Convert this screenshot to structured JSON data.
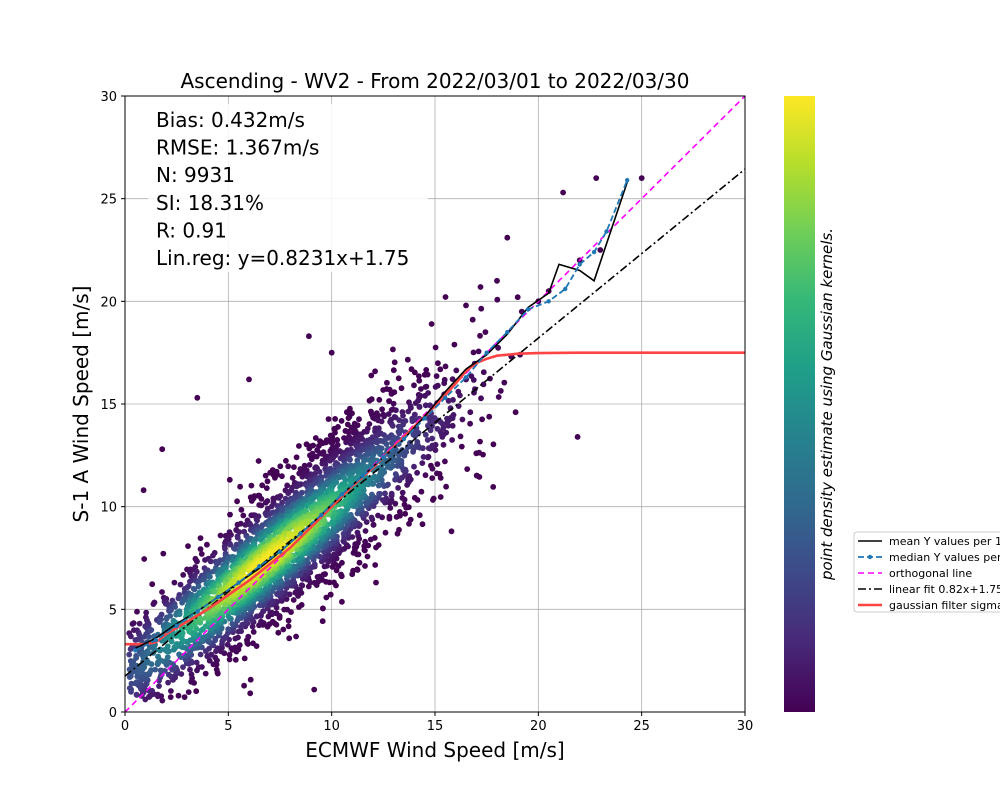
{
  "chart_data": {
    "type": "scatter",
    "title": "Ascending - WV2 - From 2022/03/01 to 2022/03/30",
    "xlabel": "ECMWF Wind Speed [m/s]",
    "ylabel": "S-1 A Wind Speed [m/s]",
    "xlim": [
      0,
      30
    ],
    "ylim": [
      0,
      30
    ],
    "xticks": [
      0,
      5,
      10,
      15,
      20,
      25,
      30
    ],
    "yticks": [
      0,
      5,
      10,
      15,
      20,
      25,
      30
    ],
    "grid": true,
    "stats": [
      "Bias: 0.432m/s",
      "RMSE: 1.367m/s",
      "N: 9931",
      "SI: 18.31%",
      "R: 0.91",
      "Lin.reg: y=0.8231x+1.75"
    ],
    "colorbar_label": "point density estimate using Gaussian kernels.",
    "colormap": [
      "#440154",
      "#482878",
      "#3e4989",
      "#31688e",
      "#26828e",
      "#1f9e89",
      "#35b779",
      "#6ece58",
      "#b5de2b",
      "#fde725"
    ],
    "legend_placement": "right, outside",
    "series": [
      {
        "name": "mean Y values per 1",
        "color": "#000000",
        "style": "solid",
        "x": [
          0.5,
          1.5,
          2.5,
          3.5,
          4.5,
          5.5,
          6.5,
          7.5,
          8.5,
          9.5,
          10.5,
          11.5,
          12.5,
          13.5,
          14.5,
          15.5,
          16.5,
          17.5,
          18.5,
          19.5,
          20.5,
          21.0,
          22.0,
          22.7,
          24.3
        ],
        "y": [
          3.1,
          3.6,
          4.3,
          4.9,
          5.6,
          6.3,
          7.0,
          7.8,
          8.7,
          9.6,
          10.6,
          11.5,
          12.4,
          13.3,
          14.4,
          15.6,
          16.7,
          17.4,
          18.4,
          19.7,
          20.4,
          21.8,
          21.5,
          21.0,
          25.8
        ]
      },
      {
        "name": "median Y values per",
        "color": "#1f77b4",
        "style": "dashed-dots",
        "x": [
          0.5,
          1.5,
          2.5,
          3.5,
          4.5,
          5.5,
          6.5,
          7.5,
          8.5,
          9.5,
          10.5,
          11.5,
          12.5,
          13.5,
          14.5,
          15.5,
          16.5,
          17.5,
          18.5,
          19.5,
          20.5,
          21.3,
          22.0,
          22.7,
          23.3,
          24.3
        ],
        "y": [
          3.0,
          3.5,
          4.2,
          4.9,
          5.6,
          6.3,
          7.1,
          7.8,
          8.7,
          9.6,
          10.6,
          11.5,
          12.4,
          13.3,
          14.3,
          15.3,
          16.3,
          17.5,
          18.5,
          19.6,
          20.0,
          20.6,
          21.8,
          22.4,
          23.4,
          25.9
        ]
      },
      {
        "name": "orthogonal line",
        "color": "#ff00ff",
        "style": "dashed",
        "x": [
          0,
          30
        ],
        "y": [
          0,
          30
        ]
      },
      {
        "name": "linear fit 0.82x+1.75",
        "color": "#000000",
        "style": "dashdot",
        "x": [
          0,
          30
        ],
        "y": [
          1.75,
          26.44
        ]
      },
      {
        "name": "gaussian filter sigma",
        "color": "#ff4444",
        "style": "solid-thick",
        "x": [
          0.0,
          1.0,
          1.5,
          2.0,
          3.0,
          4.0,
          5.0,
          6.0,
          7.0,
          8.0,
          9.0,
          10.0,
          11.0,
          12.0,
          13.0,
          14.0,
          15.0,
          16.0,
          16.5,
          17.0,
          17.5,
          18.0,
          19.0,
          20.0,
          22.0,
          25.0,
          30.0
        ],
        "y": [
          3.3,
          3.3,
          3.4,
          3.8,
          4.4,
          5.0,
          5.7,
          6.4,
          7.2,
          8.0,
          9.0,
          10.0,
          11.0,
          11.9,
          12.9,
          13.9,
          14.9,
          16.0,
          16.6,
          17.0,
          17.2,
          17.35,
          17.45,
          17.48,
          17.5,
          17.5,
          17.5
        ]
      }
    ]
  }
}
